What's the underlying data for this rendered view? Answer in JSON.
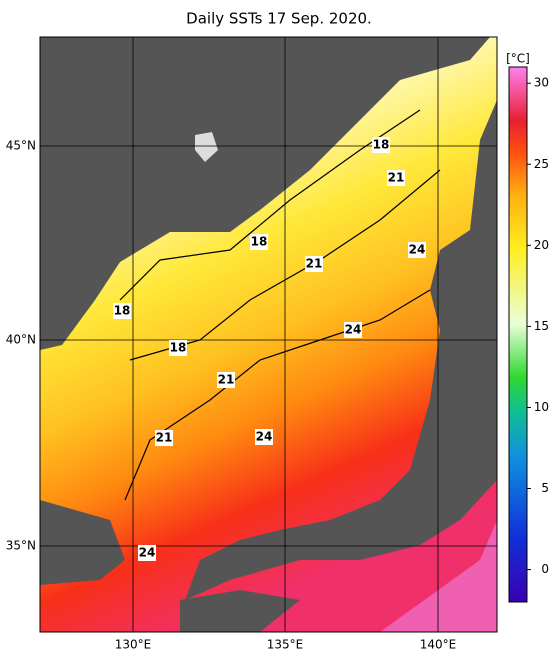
{
  "title": "Daily SSTs 17 Sep. 2020.",
  "latitude_labels": [
    "45°N",
    "40°N",
    "35°N"
  ],
  "longitude_labels": [
    "130°E",
    "135°E",
    "140°E"
  ],
  "colorbar": {
    "unit": "[°C]",
    "lim": [
      -2,
      31
    ],
    "ticks": [
      0,
      5,
      10,
      15,
      20,
      25,
      30
    ]
  },
  "contour_labels": [
    "18",
    "21",
    "18",
    "21",
    "24",
    "18",
    "18",
    "24",
    "21",
    "21",
    "24",
    "24"
  ]
}
